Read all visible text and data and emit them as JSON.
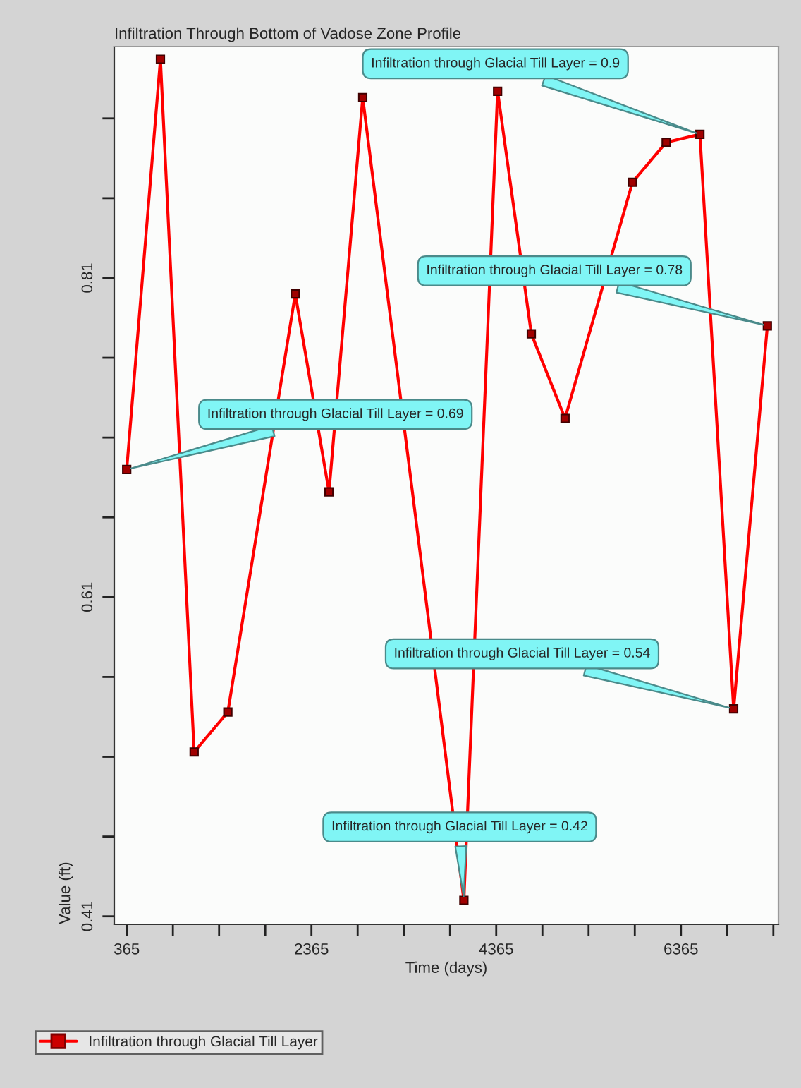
{
  "chart_data": {
    "type": "line",
    "title": "Infiltration Through Bottom of Vadose Zone Profile",
    "xlabel": "Time (days)",
    "ylabel": "Value (ft)",
    "x": [
      365,
      730,
      1095,
      1460,
      2190,
      2555,
      2920,
      4015,
      4380,
      4745,
      5110,
      5840,
      6205,
      6570,
      6935,
      7300
    ],
    "series": [
      {
        "name": "Infiltration through Glacial Till Layer",
        "color": "#ff0000",
        "values": [
          0.69,
          0.947,
          0.513,
          0.538,
          0.8,
          0.676,
          0.923,
          0.42,
          0.927,
          0.775,
          0.722,
          0.87,
          0.895,
          0.9,
          0.54,
          0.78
        ]
      }
    ],
    "xlim": [
      230,
      7420
    ],
    "ylim": [
      0.405,
      0.955
    ],
    "xticks": [
      365,
      {
        "value": 865,
        "label": null
      },
      {
        "value": 1365,
        "label": null
      },
      {
        "value": 1865,
        "label": null
      },
      2365,
      {
        "value": 2865,
        "label": null
      },
      {
        "value": 3365,
        "label": null
      },
      {
        "value": 3865,
        "label": null
      },
      4365,
      {
        "value": 4865,
        "label": null
      },
      {
        "value": 5365,
        "label": null
      },
      {
        "value": 5865,
        "label": null
      },
      6365,
      {
        "value": 6865,
        "label": null
      },
      {
        "value": 7365,
        "label": null
      }
    ],
    "yticks": [
      0.41,
      {
        "value": 0.46,
        "label": null
      },
      {
        "value": 0.51,
        "label": null
      },
      {
        "value": 0.56,
        "label": null
      },
      0.61,
      {
        "value": 0.66,
        "label": null
      },
      {
        "value": 0.71,
        "label": null
      },
      {
        "value": 0.76,
        "label": null
      },
      0.81,
      {
        "value": 0.86,
        "label": null
      },
      {
        "value": 0.91,
        "label": null
      }
    ],
    "marker": "square",
    "line_style": "solid",
    "grid": false,
    "legend": "bottom",
    "annotations": [
      {
        "text": "Infiltration through Glacial Till Layer = 0.69",
        "x": 365,
        "y": 0.69
      },
      {
        "text": "Infiltration through Glacial Till Layer = 0.9",
        "x": 6570,
        "y": 0.9
      },
      {
        "text": "Infiltration through Glacial Till Layer = 0.78",
        "x": 7300,
        "y": 0.78
      },
      {
        "text": "Infiltration through Glacial Till Layer = 0.54",
        "x": 6935,
        "y": 0.54
      },
      {
        "text": "Infiltration through Glacial Till Layer = 0.42",
        "x": 4015,
        "y": 0.42
      }
    ]
  }
}
